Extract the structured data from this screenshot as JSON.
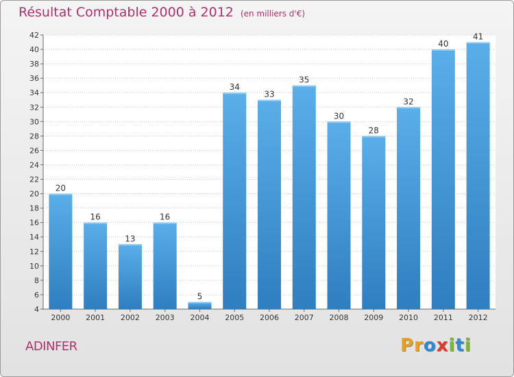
{
  "header": {
    "title": "Résultat Comptable 2000 à 2012",
    "unit": "(en milliers d'€)"
  },
  "footer": {
    "commune": "ADINFER",
    "logo": [
      "P",
      "r",
      "o",
      "x",
      "i",
      "t",
      "i"
    ]
  },
  "colors": {
    "accent": "#b0306e",
    "bar_light": "#5aaee9",
    "bar_dark": "#2f7ec0",
    "logo": [
      "#e8a020",
      "#e8a020",
      "#2a8ad4",
      "#e23a2a",
      "#7ab82c",
      "#2a8ad4",
      "#7ab82c"
    ]
  },
  "chart_data": {
    "type": "bar",
    "title": "Résultat Comptable 2000 à 2012",
    "subtitle": "(en milliers d'€)",
    "categories": [
      "2000",
      "2001",
      "2002",
      "2003",
      "2004",
      "2005",
      "2006",
      "2007",
      "2008",
      "2009",
      "2010",
      "2011",
      "2012"
    ],
    "values": [
      20,
      16,
      13,
      16,
      5,
      34,
      33,
      35,
      30,
      28,
      32,
      40,
      41
    ],
    "ylim": [
      4,
      42
    ],
    "yticks": [
      4,
      6,
      8,
      10,
      12,
      14,
      16,
      18,
      20,
      22,
      24,
      26,
      28,
      30,
      32,
      34,
      36,
      38,
      40,
      42
    ],
    "grid": true,
    "data_labels": true
  }
}
